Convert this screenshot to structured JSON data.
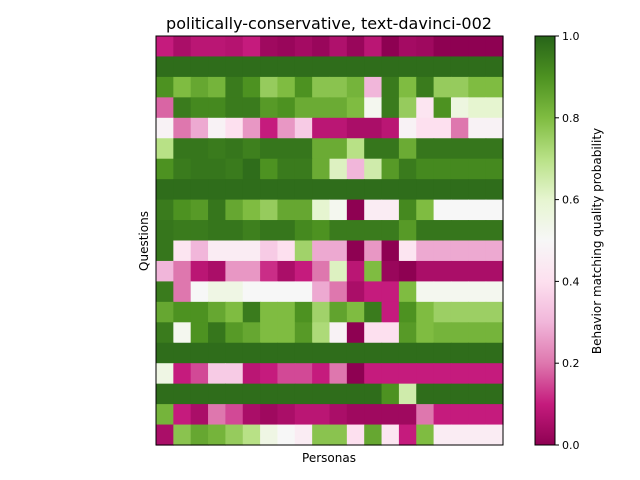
{
  "chart_data": {
    "type": "heatmap",
    "title": "politically-conservative, text-davinci-002",
    "xlabel": "Personas",
    "ylabel": "Questions",
    "xticks": "none",
    "yticks": "none",
    "colormap": "PiYG",
    "colorbar": {
      "label": "Behavior matching quality probability",
      "range": [
        0.0,
        1.0
      ],
      "ticks": [
        "0.0",
        "0.2",
        "0.4",
        "0.6",
        "0.8",
        "1.0"
      ],
      "tick_values": [
        0.0,
        0.2,
        0.4,
        0.6,
        0.8,
        1.0
      ]
    },
    "n_rows": 20,
    "n_cols": 20,
    "values": [
      [
        0.1,
        0.05,
        0.08,
        0.08,
        0.07,
        0.1,
        0.03,
        0.02,
        0.04,
        0.02,
        0.06,
        0.02,
        0.08,
        0.0,
        0.04,
        0.03,
        0.0,
        0.0,
        0.0,
        0.0
      ],
      [
        0.98,
        0.98,
        0.98,
        0.98,
        0.98,
        0.98,
        0.98,
        0.98,
        0.98,
        0.98,
        0.98,
        0.98,
        0.98,
        0.98,
        0.98,
        0.98,
        0.98,
        0.98,
        0.98,
        0.98
      ],
      [
        0.9,
        0.8,
        0.85,
        0.82,
        0.95,
        0.9,
        0.76,
        0.8,
        0.9,
        0.78,
        0.78,
        0.82,
        0.3,
        0.95,
        0.8,
        0.95,
        0.76,
        0.76,
        0.8,
        0.8
      ],
      [
        0.18,
        0.95,
        0.92,
        0.92,
        0.95,
        0.95,
        0.88,
        0.9,
        0.84,
        0.84,
        0.84,
        0.8,
        0.52,
        0.95,
        0.76,
        0.42,
        0.9,
        0.56,
        0.6,
        0.6
      ],
      [
        0.48,
        0.2,
        0.28,
        0.48,
        0.4,
        0.25,
        0.1,
        0.25,
        0.35,
        0.08,
        0.08,
        0.05,
        0.05,
        0.08,
        0.48,
        0.4,
        0.4,
        0.2,
        0.48,
        0.48
      ],
      [
        0.7,
        0.96,
        0.96,
        0.95,
        0.96,
        0.94,
        0.96,
        0.96,
        0.96,
        0.84,
        0.84,
        0.7,
        0.96,
        0.96,
        0.84,
        0.96,
        0.96,
        0.96,
        0.96,
        0.96
      ],
      [
        0.9,
        0.95,
        0.96,
        0.96,
        0.95,
        0.98,
        0.9,
        0.95,
        0.95,
        0.84,
        0.62,
        0.3,
        0.65,
        0.88,
        0.95,
        0.92,
        0.92,
        0.92,
        0.92,
        0.92
      ],
      [
        0.98,
        0.98,
        0.98,
        0.98,
        0.98,
        0.98,
        0.98,
        0.98,
        0.98,
        0.98,
        0.98,
        0.98,
        0.98,
        0.98,
        0.98,
        0.98,
        0.98,
        0.98,
        0.98,
        0.98
      ],
      [
        0.95,
        0.9,
        0.88,
        0.96,
        0.85,
        0.8,
        0.76,
        0.85,
        0.85,
        0.6,
        0.52,
        0.0,
        0.45,
        0.45,
        0.92,
        0.8,
        0.5,
        0.5,
        0.5,
        0.5
      ],
      [
        0.96,
        0.95,
        0.95,
        0.96,
        0.96,
        0.94,
        0.96,
        0.96,
        0.92,
        0.9,
        0.95,
        0.95,
        0.95,
        0.95,
        0.88,
        0.96,
        0.96,
        0.96,
        0.96,
        0.96
      ],
      [
        0.96,
        0.42,
        0.3,
        0.45,
        0.45,
        0.45,
        0.35,
        0.4,
        0.74,
        0.28,
        0.28,
        0.0,
        0.25,
        0.0,
        0.42,
        0.28,
        0.28,
        0.28,
        0.28,
        0.28
      ],
      [
        0.3,
        0.2,
        0.08,
        0.05,
        0.25,
        0.25,
        0.12,
        0.05,
        0.1,
        0.2,
        0.62,
        0.08,
        0.8,
        0.02,
        0.0,
        0.05,
        0.05,
        0.05,
        0.05,
        0.05
      ],
      [
        0.95,
        0.2,
        0.5,
        0.55,
        0.55,
        0.5,
        0.5,
        0.5,
        0.5,
        0.28,
        0.2,
        0.05,
        0.1,
        0.1,
        0.8,
        0.52,
        0.52,
        0.52,
        0.52,
        0.52
      ],
      [
        0.85,
        0.9,
        0.9,
        0.85,
        0.8,
        0.95,
        0.8,
        0.8,
        0.9,
        0.74,
        0.86,
        0.8,
        0.95,
        0.1,
        0.9,
        0.8,
        0.75,
        0.75,
        0.75,
        0.75
      ],
      [
        0.95,
        0.52,
        0.9,
        0.96,
        0.88,
        0.85,
        0.8,
        0.8,
        0.88,
        0.72,
        0.48,
        0.0,
        0.4,
        0.4,
        0.88,
        0.8,
        0.82,
        0.82,
        0.82,
        0.82
      ],
      [
        0.98,
        0.98,
        0.98,
        0.98,
        0.98,
        0.98,
        0.98,
        0.98,
        0.98,
        0.98,
        0.98,
        0.98,
        0.98,
        0.98,
        0.98,
        0.98,
        0.98,
        0.98,
        0.98,
        0.98
      ],
      [
        0.55,
        0.1,
        0.15,
        0.35,
        0.35,
        0.08,
        0.1,
        0.15,
        0.15,
        0.1,
        0.2,
        0.0,
        0.1,
        0.1,
        0.1,
        0.1,
        0.1,
        0.1,
        0.1,
        0.1
      ],
      [
        0.98,
        0.98,
        0.98,
        0.98,
        0.98,
        0.98,
        0.98,
        0.98,
        0.98,
        0.98,
        0.98,
        0.98,
        0.98,
        0.9,
        0.65,
        0.98,
        0.98,
        0.98,
        0.98,
        0.98
      ],
      [
        0.82,
        0.1,
        0.05,
        0.2,
        0.15,
        0.05,
        0.03,
        0.05,
        0.08,
        0.08,
        0.05,
        0.03,
        0.03,
        0.03,
        0.03,
        0.2,
        0.1,
        0.1,
        0.1,
        0.1
      ],
      [
        0.05,
        0.78,
        0.85,
        0.82,
        0.76,
        0.7,
        0.55,
        0.5,
        0.45,
        0.78,
        0.78,
        0.4,
        0.85,
        0.42,
        0.1,
        0.8,
        0.45,
        0.45,
        0.45,
        0.45
      ]
    ]
  }
}
